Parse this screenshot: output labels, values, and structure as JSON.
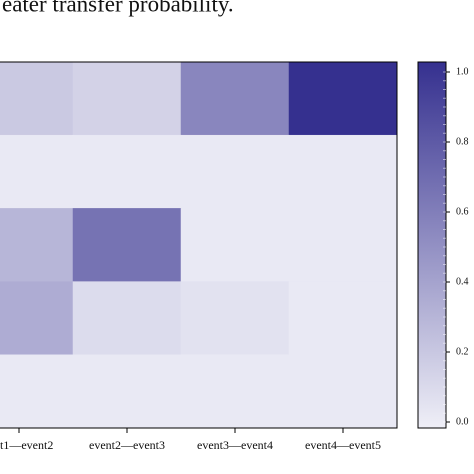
{
  "chart_data": {
    "type": "heatmap",
    "title": "eater transfer probability.",
    "categories": [
      "t1—event2",
      "event2—event3",
      "event3—event4",
      "event4—event5"
    ],
    "z": [
      [
        0.2,
        0.15,
        0.55,
        1.0
      ],
      [
        0.03,
        0.03,
        0.03,
        0.03
      ],
      [
        0.3,
        0.65,
        0.03,
        0.03
      ],
      [
        0.35,
        0.1,
        0.07,
        0.03
      ],
      [
        0.03,
        0.03,
        0.03,
        0.03
      ]
    ],
    "colormap": [
      "#efeff7",
      "#35308f"
    ],
    "clim": [
      0,
      1
    ],
    "cticks": [
      {
        "value": 0,
        "label": "0.0"
      },
      0.2,
      0.4,
      0.6,
      0.8,
      {
        "value": 1,
        "label": "1.0"
      }
    ]
  }
}
